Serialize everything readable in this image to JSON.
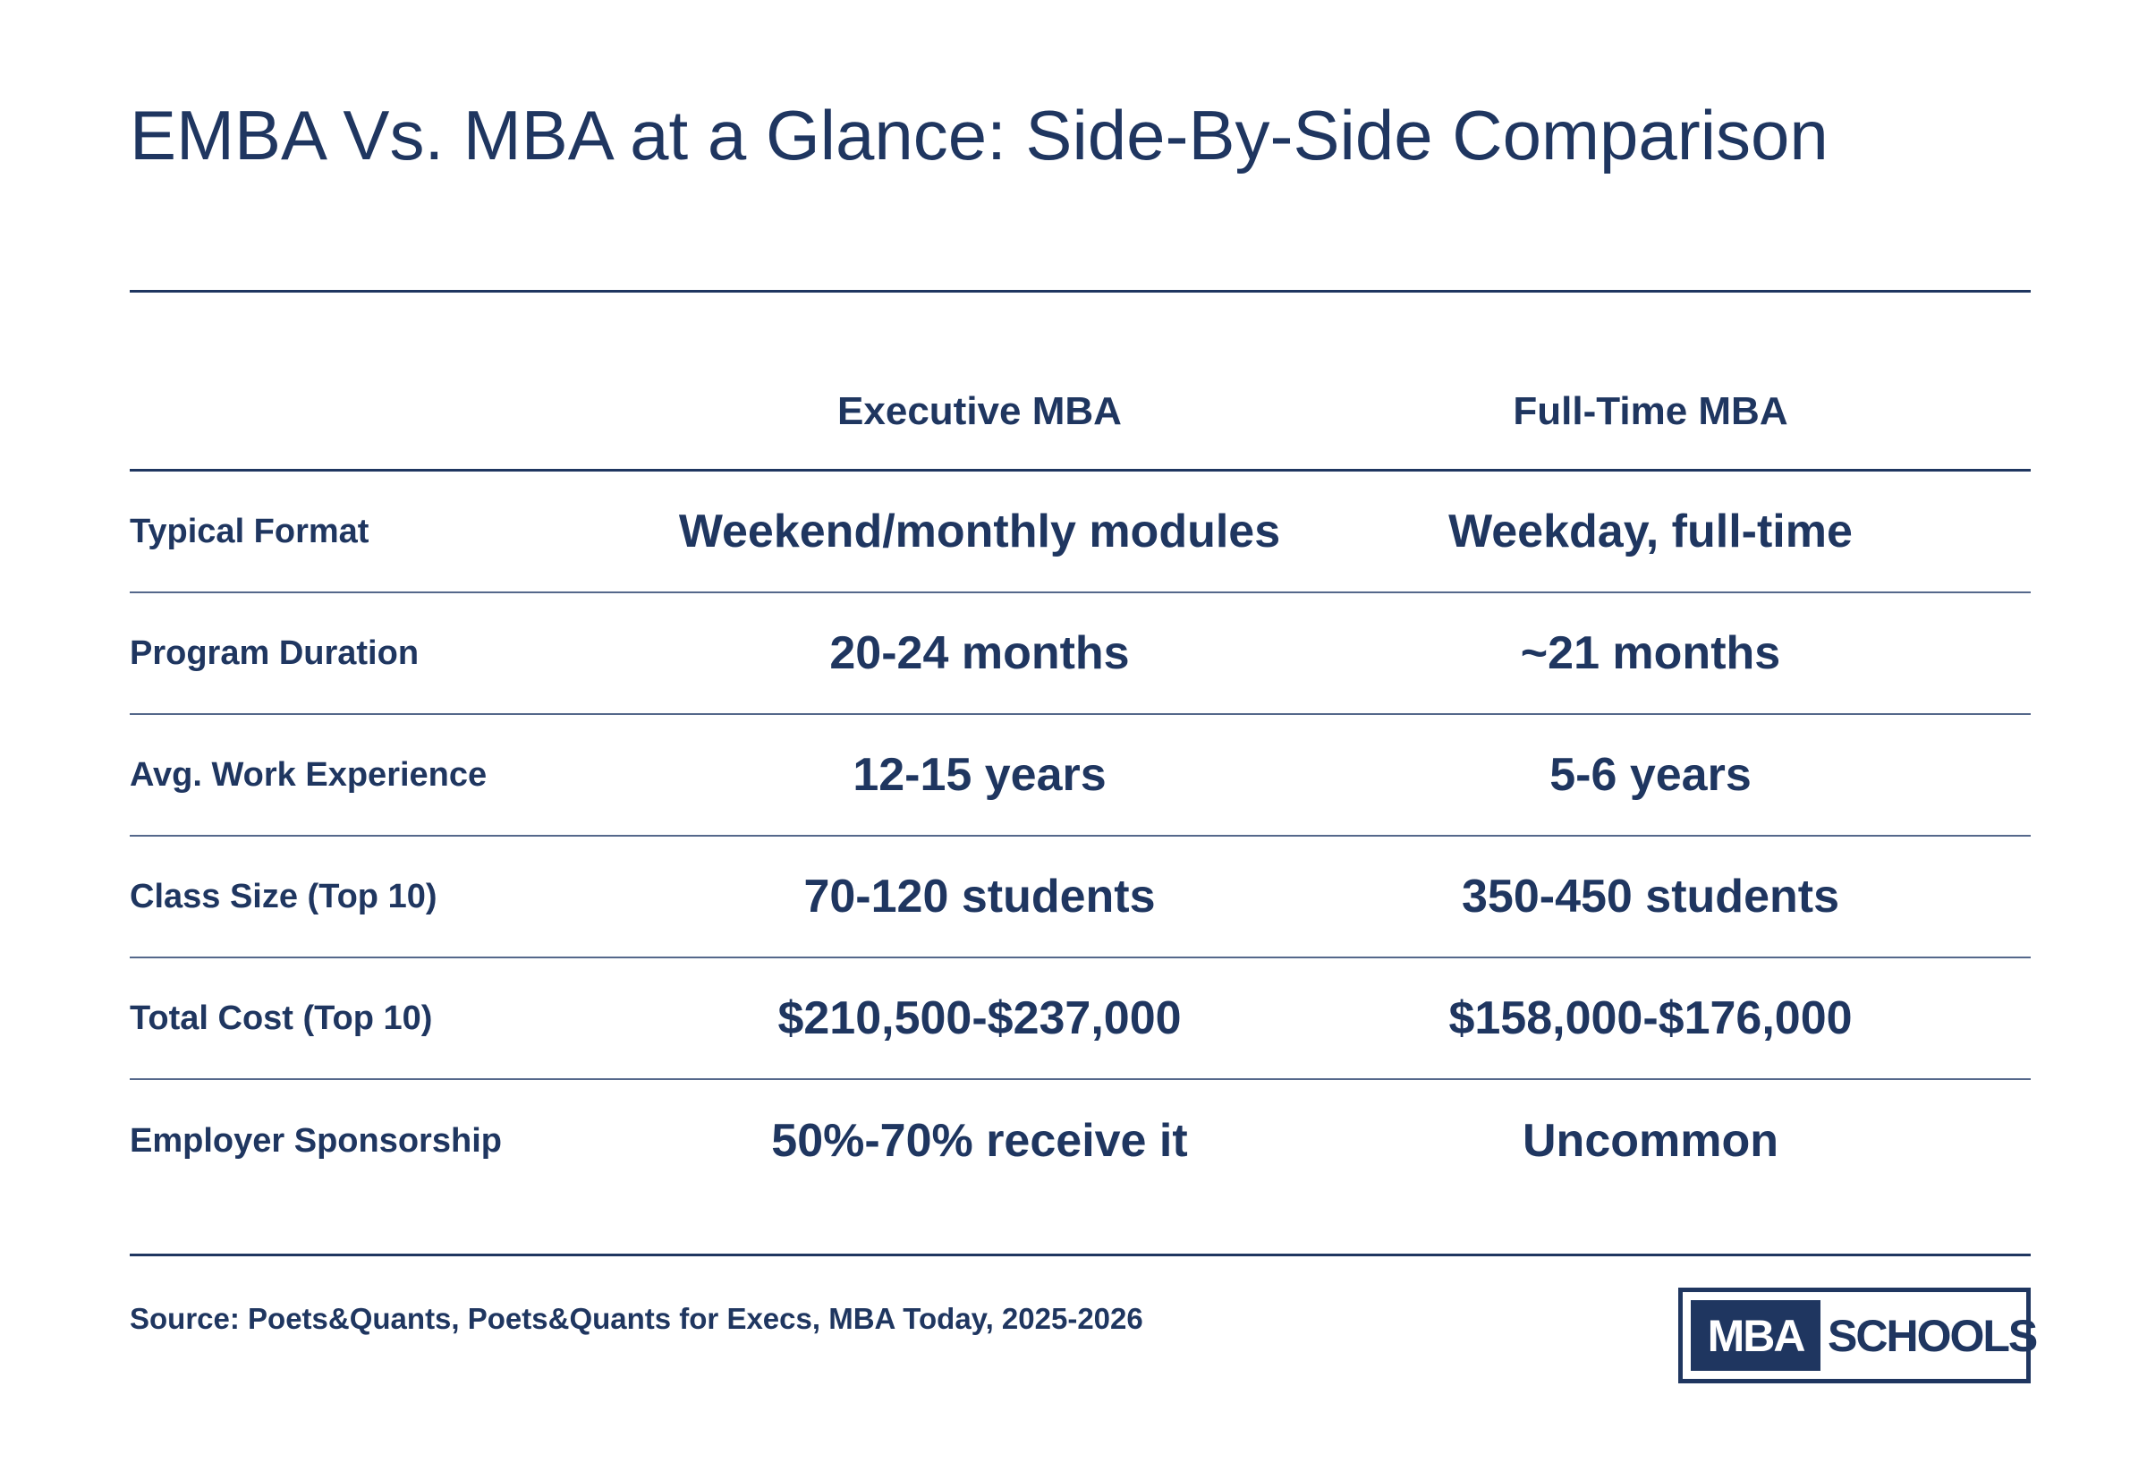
{
  "title": "EMBA Vs. MBA at a Glance: Side-By-Side Comparison",
  "table": {
    "columns": [
      "Executive MBA",
      "Full-Time MBA"
    ],
    "rows": [
      {
        "label": "Typical Format",
        "values": [
          "Weekend/monthly modules",
          "Weekday, full-time"
        ]
      },
      {
        "label": "Program Duration",
        "values": [
          "20-24 months",
          "~21 months"
        ]
      },
      {
        "label": "Avg. Work Experience",
        "values": [
          "12-15 years",
          "5-6 years"
        ]
      },
      {
        "label": "Class Size (Top 10)",
        "values": [
          "70-120 students",
          "350-450 students"
        ]
      },
      {
        "label": "Total Cost (Top 10)",
        "values": [
          "$210,500-$237,000",
          "$158,000-$176,000"
        ]
      },
      {
        "label": "Employer Sponsorship",
        "values": [
          "50%-70% receive it",
          "Uncommon"
        ]
      }
    ]
  },
  "source": "Source: Poets&Quants, Poets&Quants for Execs, MBA Today, 2025-2026",
  "logo": {
    "left_text": "MBA",
    "right_text": "SCHOOLS"
  },
  "colors": {
    "primary": "#1f3660",
    "row_divider": "#55688b",
    "background": "#ffffff"
  }
}
